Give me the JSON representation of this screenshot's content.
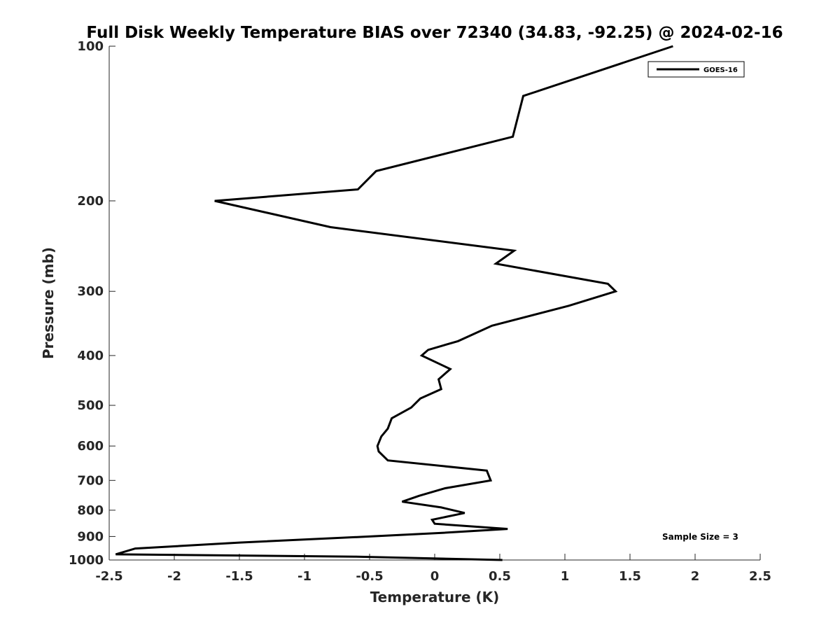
{
  "chart_data": {
    "type": "line",
    "title": "Full Disk Weekly Temperature BIAS over 72340 (34.83, -92.25) @ 2024-02-16",
    "xlabel": "Temperature (K)",
    "ylabel": "Pressure (mb)",
    "xlim": [
      -2.5,
      2.5
    ],
    "ylim": [
      100,
      1000
    ],
    "y_scale": "log",
    "y_reversed": true,
    "grid": false,
    "legend_position": "top-right",
    "x_ticks": [
      "-2.5",
      "-2",
      "-1.5",
      "-1",
      "-0.5",
      "0",
      "0.5",
      "1",
      "1.5",
      "2",
      "2.5"
    ],
    "y_ticks": [
      "100",
      "200",
      "300",
      "400",
      "500",
      "600",
      "700",
      "800",
      "900",
      "1000"
    ],
    "annotation": "Sample Size = 3",
    "series": [
      {
        "name": "GOES-16",
        "color": "#000000",
        "points": [
          [
            1.83,
            100
          ],
          [
            0.68,
            125
          ],
          [
            0.6,
            150
          ],
          [
            -0.45,
            175
          ],
          [
            -0.59,
            190
          ],
          [
            -1.69,
            200
          ],
          [
            -0.8,
            225
          ],
          [
            0.61,
            250
          ],
          [
            0.47,
            265
          ],
          [
            1.33,
            290
          ],
          [
            1.39,
            300
          ],
          [
            1.03,
            320
          ],
          [
            0.44,
            350
          ],
          [
            0.18,
            375
          ],
          [
            -0.05,
            390
          ],
          [
            -0.1,
            400
          ],
          [
            0.12,
            425
          ],
          [
            0.03,
            445
          ],
          [
            0.05,
            465
          ],
          [
            -0.11,
            485
          ],
          [
            -0.18,
            505
          ],
          [
            -0.33,
            530
          ],
          [
            -0.36,
            555
          ],
          [
            -0.41,
            575
          ],
          [
            -0.44,
            600
          ],
          [
            -0.43,
            615
          ],
          [
            -0.36,
            640
          ],
          [
            0.4,
            670
          ],
          [
            0.43,
            700
          ],
          [
            0.08,
            725
          ],
          [
            -0.12,
            750
          ],
          [
            -0.25,
            770
          ],
          [
            0.05,
            790
          ],
          [
            0.23,
            810
          ],
          [
            -0.02,
            835
          ],
          [
            0.0,
            850
          ],
          [
            0.56,
            870
          ],
          [
            0.07,
            885
          ],
          [
            -0.5,
            900
          ],
          [
            -1.5,
            925
          ],
          [
            -2.3,
            950
          ],
          [
            -2.45,
            975
          ],
          [
            -0.6,
            985
          ],
          [
            0.52,
            1000
          ]
        ]
      }
    ]
  }
}
